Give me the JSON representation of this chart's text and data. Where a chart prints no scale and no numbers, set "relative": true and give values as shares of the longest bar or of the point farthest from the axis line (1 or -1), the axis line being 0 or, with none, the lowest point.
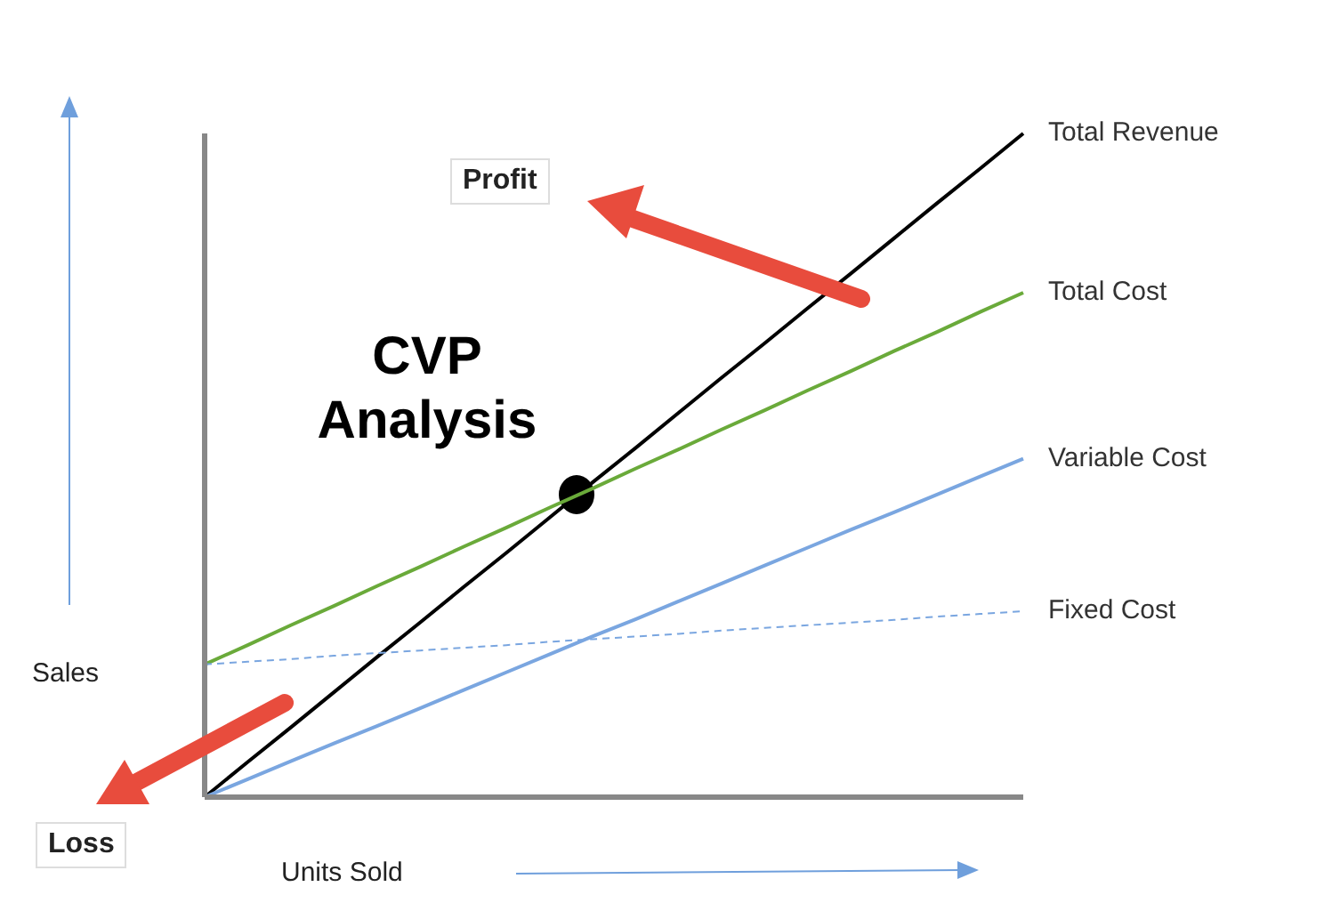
{
  "chart_data": {
    "type": "line",
    "title": "CVP Analysis",
    "xlabel": "Units Sold",
    "ylabel": "Sales",
    "relative": true,
    "line_style": "solid",
    "marker": "none",
    "categories": [
      null,
      null,
      null,
      null,
      null,
      null,
      null,
      null,
      null,
      null,
      null,
      null,
      null,
      null,
      null,
      null,
      null,
      null,
      null,
      null
    ],
    "series": [
      {
        "name": "Total Revenue",
        "color": "#000000",
        "values": [
          0,
          0.053,
          0.105,
          0.158,
          0.211,
          0.263,
          0.316,
          0.368,
          0.421,
          0.474,
          0.526,
          0.579,
          0.632,
          0.684,
          0.737,
          0.789,
          0.842,
          0.895,
          0.947,
          1
        ]
      },
      {
        "name": "Total Cost",
        "color": "#6aaa3a",
        "values": [
          0.2,
          0.229,
          0.259,
          0.288,
          0.318,
          0.347,
          0.377,
          0.406,
          0.436,
          0.465,
          0.495,
          0.524,
          0.554,
          0.583,
          0.613,
          0.642,
          0.672,
          0.701,
          0.731,
          0.76
        ]
      },
      {
        "name": "Variable Cost",
        "color": "#7aa6e0",
        "values": [
          0,
          0.027,
          0.054,
          0.081,
          0.107,
          0.134,
          0.161,
          0.188,
          0.215,
          0.242,
          0.268,
          0.295,
          0.322,
          0.349,
          0.376,
          0.403,
          0.429,
          0.456,
          0.483,
          0.51
        ]
      },
      {
        "name": "Fixed Cost",
        "color": "#7aa6e0",
        "line_style": "dashed",
        "values": [
          0.2,
          0.204,
          0.208,
          0.213,
          0.217,
          0.221,
          0.225,
          0.229,
          0.234,
          0.238,
          0.242,
          0.246,
          0.251,
          0.255,
          0.259,
          0.263,
          0.267,
          0.272,
          0.276,
          0.28
        ]
      }
    ],
    "annotations": [
      "Profit",
      "Loss"
    ]
  }
}
